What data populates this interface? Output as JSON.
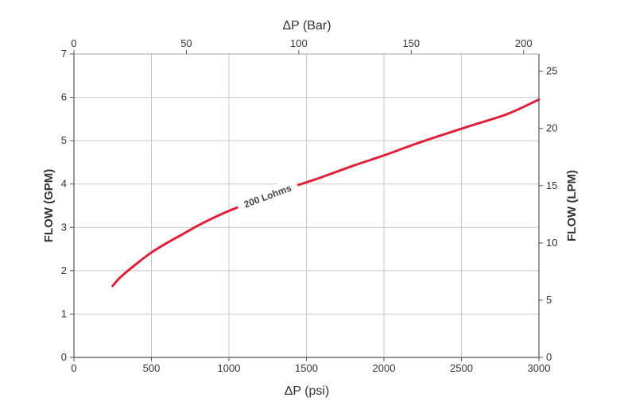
{
  "chart_data": {
    "type": "line",
    "x_label": "ΔP (psi)",
    "x_ticks": [
      "0",
      "500",
      "1000",
      "1500",
      "2000",
      "2500",
      "3000"
    ],
    "x_lim": [
      0,
      3000
    ],
    "x_top_label": "ΔP (Bar)",
    "x_top_ticks": [
      "0",
      "50",
      "100",
      "150",
      "200"
    ],
    "x_top_lim": [
      0,
      206.8
    ],
    "y_label": "FLOW (GPM)",
    "y_ticks": [
      "0",
      "1",
      "2",
      "3",
      "4",
      "5",
      "6",
      "7"
    ],
    "y_lim": [
      0,
      7
    ],
    "y_right_label": "FLOW (LPM)",
    "y_right_ticks": [
      "0",
      "5",
      "10",
      "15",
      "20",
      "25"
    ],
    "y_right_lim": [
      0,
      26.5
    ],
    "grid": true,
    "series": [
      {
        "name": "200 Lohms",
        "color": "#e0203a",
        "x": [
          250,
          300,
          400,
          500,
          600,
          700,
          800,
          900,
          1000,
          1100,
          1200,
          1300,
          1400,
          1500,
          1600,
          1800,
          2000,
          2200,
          2400,
          2600,
          2800,
          3000
        ],
        "y": [
          1.65,
          1.85,
          2.15,
          2.42,
          2.64,
          2.84,
          3.04,
          3.22,
          3.38,
          3.52,
          3.66,
          3.78,
          3.92,
          4.04,
          4.16,
          4.42,
          4.66,
          4.92,
          5.16,
          5.39,
          5.62,
          5.95
        ]
      }
    ]
  }
}
